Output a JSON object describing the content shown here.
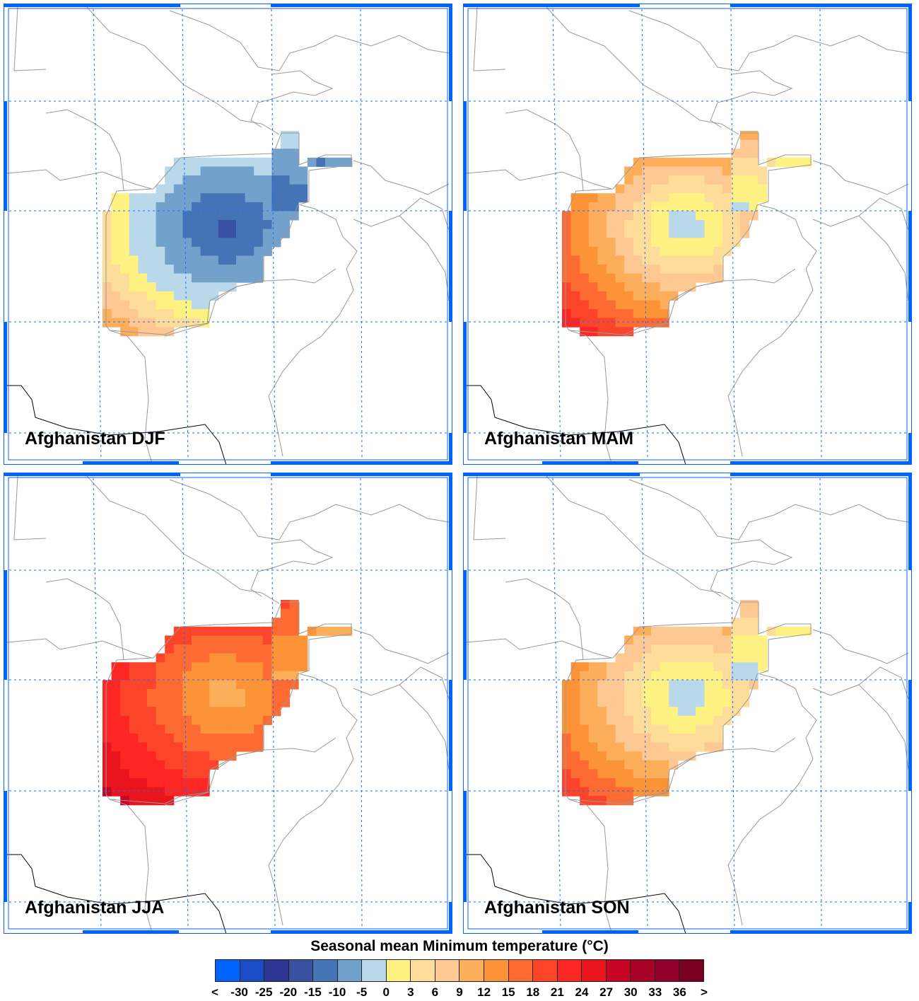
{
  "panels": [
    {
      "title": "Afghanistan DJF",
      "season": "DJF"
    },
    {
      "title": "Afghanistan MAM",
      "season": "MAM"
    },
    {
      "title": "Afghanistan JJA",
      "season": "JJA"
    },
    {
      "title": "Afghanistan SON",
      "season": "SON"
    }
  ],
  "colorbar": {
    "title": "Seasonal mean Minimum temperature (°C)",
    "labels": [
      "<",
      "-30",
      "-25",
      "-20",
      "-15",
      "-10",
      "-5",
      "0",
      "3",
      "6",
      "9",
      "12",
      "15",
      "18",
      "21",
      "24",
      "27",
      "30",
      "33",
      "36",
      ">"
    ],
    "colors": [
      "#0062ff",
      "#1a4cc8",
      "#2f3592",
      "#3a50a0",
      "#4574b6",
      "#72a1cb",
      "#b9d9ea",
      "#fff282",
      "#fedd9a",
      "#fdc891",
      "#fdae5a",
      "#fc9337",
      "#fd6a32",
      "#fb4429",
      "#fc2622",
      "#ea141d",
      "#c60423",
      "#a70128",
      "#93002b",
      "#7a0020"
    ]
  },
  "map_style": {
    "frame_color": "#0062ff",
    "grid_color": "#1a6bff",
    "border_color": "#999999",
    "coast_color": "#000000"
  }
}
